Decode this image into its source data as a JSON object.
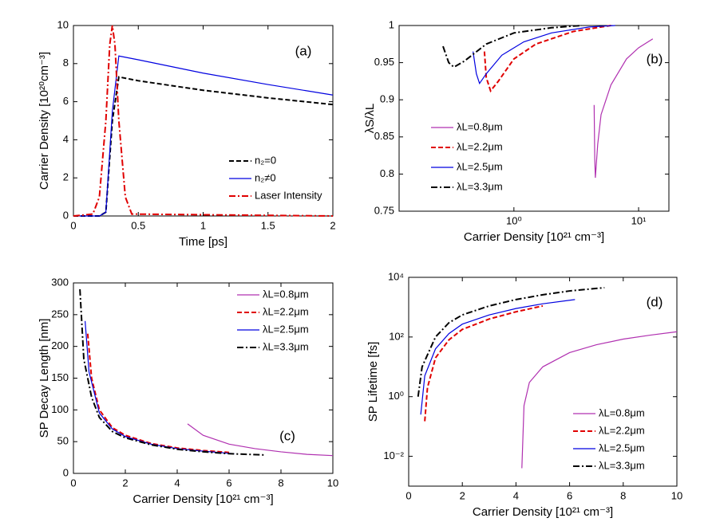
{
  "chart_data": [
    {
      "type": "line",
      "xlabel": "Time [ps]",
      "ylabel": "Carrier Density [10²⁰cm⁻³]",
      "annotation": "(a)",
      "xlim": [
        0,
        2
      ],
      "ylim": [
        0,
        10
      ],
      "xticks": [
        0,
        0.5,
        1,
        1.5,
        2
      ],
      "yticks": [
        0,
        2,
        4,
        6,
        8,
        10
      ],
      "legend": "lower right",
      "series": [
        {
          "name": "n₂=0",
          "color": "#000000",
          "dash": "dashed",
          "x": [
            0,
            0.2,
            0.25,
            0.3,
            0.35,
            0.5,
            1,
            1.5,
            2
          ],
          "values": [
            0,
            0,
            0.2,
            5,
            7.3,
            7.1,
            6.6,
            6.2,
            5.85
          ]
        },
        {
          "name": "n₂≠0",
          "color": "#0000e0",
          "dash": "solid",
          "x": [
            0,
            0.2,
            0.25,
            0.3,
            0.35,
            0.5,
            1,
            1.5,
            2
          ],
          "values": [
            0,
            0,
            0.2,
            5.5,
            8.4,
            8.2,
            7.5,
            6.9,
            6.35
          ]
        },
        {
          "name": "Laser Intensity",
          "color": "#e00000",
          "dash": "dashdot",
          "x": [
            0,
            0.15,
            0.2,
            0.25,
            0.28,
            0.3,
            0.32,
            0.35,
            0.4,
            0.45,
            2
          ],
          "values": [
            0,
            0.1,
            1,
            5,
            9,
            10,
            9,
            5,
            1,
            0.1,
            0
          ]
        }
      ]
    },
    {
      "type": "line",
      "xlabel": "Carrier Density [10²¹ cm⁻³]",
      "ylabel": "λS/λL",
      "annotation": "(b)",
      "xscale": "log",
      "xlim": [
        0.12,
        17.5
      ],
      "ylim": [
        0.75,
        1
      ],
      "xticks": [
        {
          "value": 1,
          "label": "10⁰"
        },
        {
          "value": 10,
          "label": "10¹"
        }
      ],
      "yticks": [
        0.75,
        0.8,
        0.85,
        0.9,
        0.95,
        1
      ],
      "legend": "lower left",
      "series": [
        {
          "name": "λL=0.8μm",
          "color": "#b030b0",
          "dash": "solid",
          "x": [
            4.4,
            4.45,
            4.5,
            4.7,
            5,
            6,
            8,
            10,
            13
          ],
          "values": [
            0.893,
            0.82,
            0.795,
            0.84,
            0.88,
            0.92,
            0.955,
            0.97,
            0.982
          ]
        },
        {
          "name": "λL=2.2μm",
          "color": "#e00000",
          "dash": "dashed",
          "x": [
            0.58,
            0.6,
            0.65,
            0.75,
            1,
            1.5,
            3,
            5,
            6
          ],
          "values": [
            0.965,
            0.93,
            0.912,
            0.925,
            0.955,
            0.975,
            0.992,
            0.998,
            1
          ]
        },
        {
          "name": "λL=2.5μm",
          "color": "#0000e0",
          "dash": "solid",
          "x": [
            0.47,
            0.5,
            0.53,
            0.6,
            0.8,
            1.2,
            2,
            4,
            6.5
          ],
          "values": [
            0.965,
            0.935,
            0.922,
            0.935,
            0.96,
            0.978,
            0.99,
            0.998,
            1
          ]
        },
        {
          "name": "λL=3.3μm",
          "color": "#000000",
          "dash": "dashdot",
          "x": [
            0.27,
            0.3,
            0.33,
            0.4,
            0.6,
            1,
            2,
            3.5
          ],
          "values": [
            0.972,
            0.95,
            0.944,
            0.952,
            0.975,
            0.99,
            0.997,
            1
          ]
        }
      ]
    },
    {
      "type": "line",
      "xlabel": "Carrier Density [10²¹ cm⁻³]",
      "ylabel": "SP Decay Length [nm]",
      "annotation": "(c)",
      "xlim": [
        0,
        10
      ],
      "ylim": [
        0,
        300
      ],
      "xticks": [
        0,
        2,
        4,
        6,
        8,
        10
      ],
      "yticks": [
        0,
        50,
        100,
        150,
        200,
        250,
        300
      ],
      "legend": "upper right",
      "series": [
        {
          "name": "λL=0.8μm",
          "color": "#b030b0",
          "dash": "solid",
          "x": [
            4.4,
            5,
            6,
            7,
            8,
            9,
            10
          ],
          "values": [
            78,
            60,
            46,
            39,
            34,
            30,
            28
          ]
        },
        {
          "name": "λL=2.2μm",
          "color": "#e00000",
          "dash": "dashed",
          "x": [
            0.55,
            0.7,
            1,
            1.5,
            2,
            3,
            4,
            5,
            6
          ],
          "values": [
            220,
            150,
            100,
            72,
            60,
            47,
            40,
            36,
            33
          ]
        },
        {
          "name": "λL=2.5μm",
          "color": "#0000e0",
          "dash": "solid",
          "x": [
            0.45,
            0.6,
            1,
            1.5,
            2,
            3,
            4,
            5,
            6.2
          ],
          "values": [
            240,
            160,
            95,
            70,
            58,
            46,
            39,
            35,
            31
          ]
        },
        {
          "name": "λL=3.3μm",
          "color": "#000000",
          "dash": "dashdot",
          "x": [
            0.25,
            0.4,
            0.7,
            1,
            1.5,
            2,
            3,
            4,
            5,
            6,
            7.4
          ],
          "values": [
            290,
            180,
            120,
            88,
            66,
            56,
            45,
            38,
            34,
            31,
            29
          ]
        }
      ]
    },
    {
      "type": "line",
      "xlabel": "Carrier Density [10²¹ cm⁻³]",
      "ylabel": "SP Lifetime [fs]",
      "annotation": "(d)",
      "yscale": "log",
      "xlim": [
        0,
        10
      ],
      "ylim": [
        0.001,
        10000
      ],
      "xticks": [
        0,
        2,
        4,
        6,
        8,
        10
      ],
      "yticks": [
        {
          "value": 0.01,
          "label": "10⁻²"
        },
        {
          "value": 1,
          "label": "10⁰"
        },
        {
          "value": 100,
          "label": "10²"
        },
        {
          "value": 10000,
          "label": "10⁴"
        }
      ],
      "legend": "lower right",
      "series": [
        {
          "name": "λL=0.8μm",
          "color": "#b030b0",
          "dash": "solid",
          "x": [
            4.22,
            4.3,
            4.5,
            5,
            6,
            7,
            8,
            9,
            10
          ],
          "values": [
            0.004,
            0.5,
            3,
            10,
            30,
            55,
            85,
            115,
            150
          ]
        },
        {
          "name": "λL=2.2μm",
          "color": "#e00000",
          "dash": "dashed",
          "x": [
            0.6,
            0.7,
            1,
            1.5,
            2,
            3,
            4,
            5
          ],
          "values": [
            0.15,
            2,
            20,
            80,
            180,
            400,
            700,
            1100
          ]
        },
        {
          "name": "λL=2.5μm",
          "color": "#0000e0",
          "dash": "solid",
          "x": [
            0.45,
            0.6,
            1,
            1.5,
            2,
            3,
            4,
            5,
            6.2
          ],
          "values": [
            0.25,
            5,
            40,
            130,
            270,
            550,
            900,
            1300,
            1800
          ]
        },
        {
          "name": "λL=3.3μm",
          "color": "#000000",
          "dash": "dashdot",
          "x": [
            0.35,
            0.5,
            1,
            1.5,
            2,
            3,
            4,
            5,
            6,
            7.3
          ],
          "values": [
            1,
            10,
            100,
            300,
            550,
            1100,
            1800,
            2600,
            3500,
            4500
          ]
        }
      ]
    }
  ]
}
